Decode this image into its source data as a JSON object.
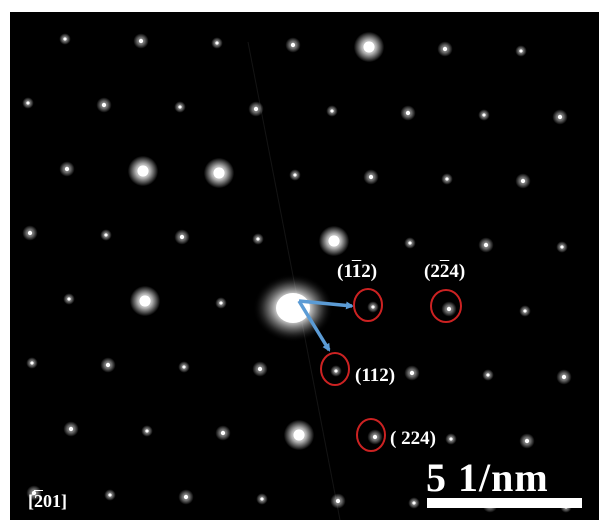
{
  "image": {
    "type": "selected-area electron diffraction pattern",
    "background_color": "#000000",
    "spot_color": "#ffffff",
    "circle_color": "#cc2222",
    "arrow_color": "#5b9bd5"
  },
  "labels": {
    "hkl_1": {
      "pre": "(1",
      "bar": "1",
      "post": "2)"
    },
    "hkl_2": {
      "pre": "(2",
      "bar": "2",
      "post": "4)"
    },
    "hkl_3": "(112)",
    "hkl_4": "( 224)"
  },
  "scale_bar": {
    "label": "5  1/nm"
  },
  "zone_axis": {
    "pre": "[",
    "bar": "2",
    "post": "01]"
  }
}
